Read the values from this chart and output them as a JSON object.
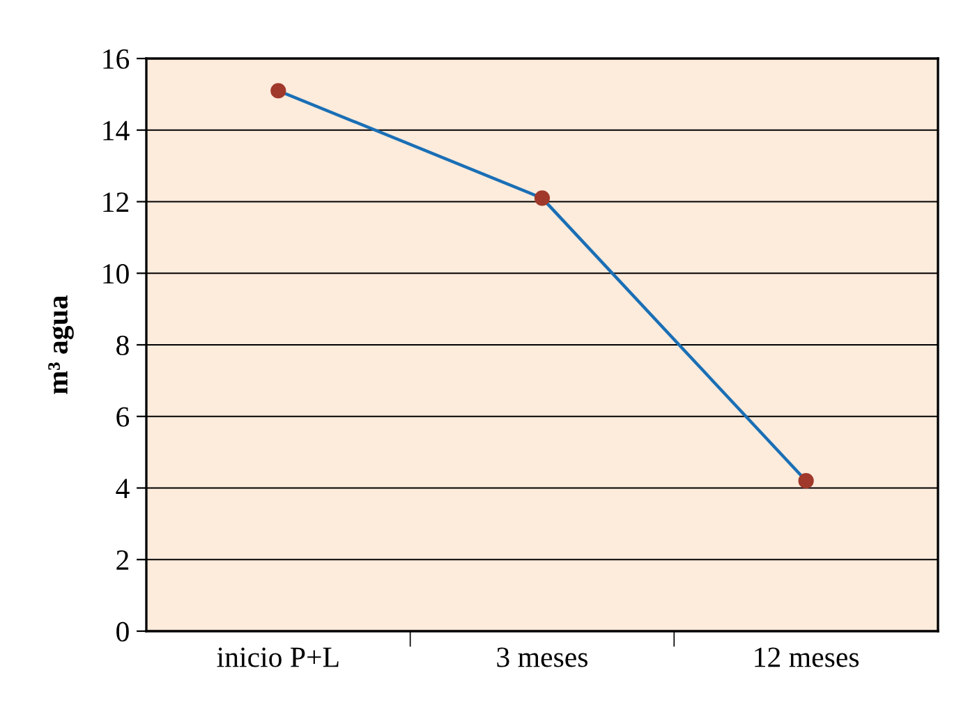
{
  "chart_data": {
    "type": "line",
    "ylabel": "m³ agua",
    "categories": [
      "inicio P+L",
      "3 meses",
      "12 meses"
    ],
    "series": [
      {
        "color": "#1a6fb5",
        "colors": [
          "#a0392b",
          "#a0392b",
          "#a0392b"
        ],
        "values": [
          15.1,
          12.1,
          4.2
        ]
      }
    ],
    "ylim": [
      0,
      16
    ],
    "yticks": [
      0,
      2,
      4,
      6,
      8,
      10,
      12,
      14,
      16
    ],
    "grid": "y",
    "marker": "circle",
    "line_style": "solid",
    "legend": false
  }
}
